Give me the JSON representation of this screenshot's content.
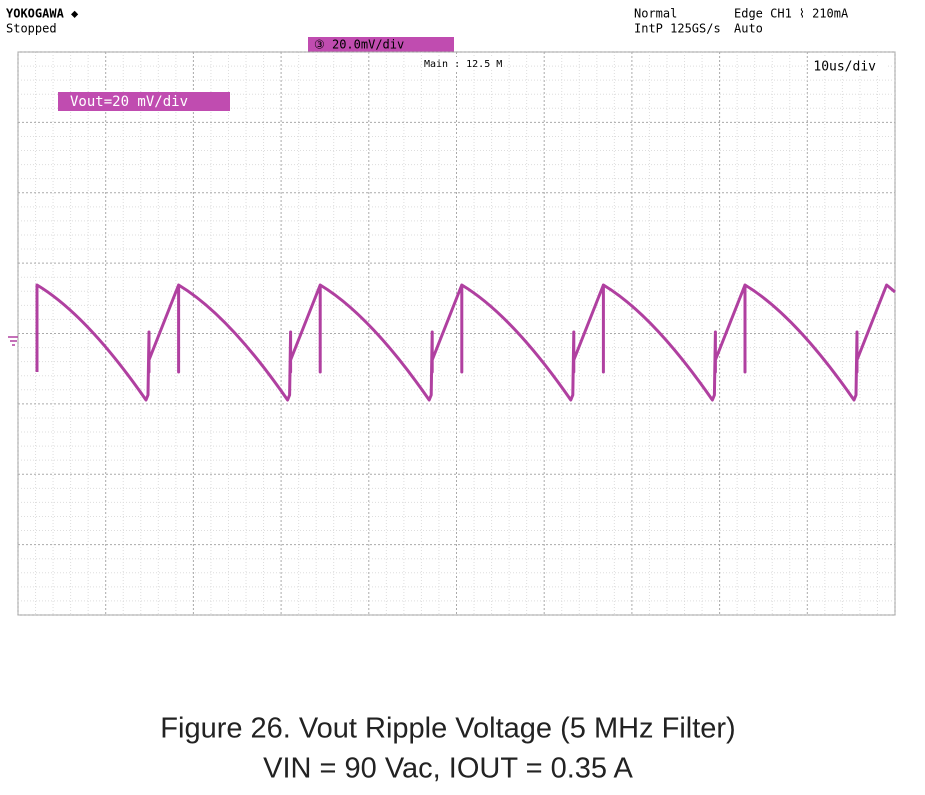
{
  "header": {
    "brand": "YOKOGAWA ◆",
    "status": "Stopped",
    "mode": "Normal",
    "sample_rate": "IntP 125GS/s",
    "trigger": "Edge CH1 ⌇ 210mA",
    "trigger_mode": "Auto"
  },
  "screen": {
    "channel_scale": "③ 20.0mV/div",
    "record": "Main : 12.5 M",
    "timebase": "10us/div",
    "label": "Vout=20 mV/div"
  },
  "caption": {
    "line1": "Figure 26. Vout Ripple Voltage (5 MHz Filter)",
    "line2": "VIN = 90 Vac, IOUT = 0.35 A"
  }
}
